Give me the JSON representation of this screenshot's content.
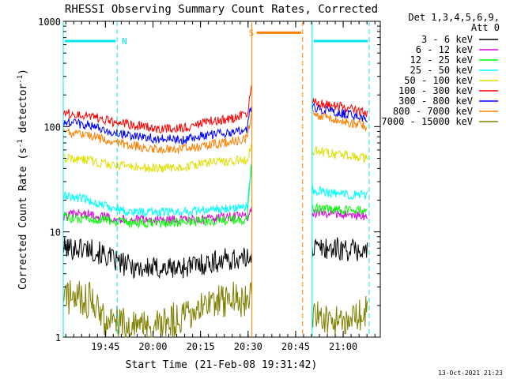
{
  "chart_data": {
    "type": "line",
    "title": "RHESSI Observing Summary Count Rates, Corrected",
    "xlabel": "Start Time (21-Feb-08 19:31:42)",
    "ylabel_main": "Corrected Count Rate (s",
    "ylabel_sup1": "-1",
    "ylabel_mid": " detector",
    "ylabel_sup2": "-1",
    "ylabel_end": ")",
    "yscale": "log",
    "ylim": [
      1,
      1000
    ],
    "xlim_minutes": [
      0,
      100
    ],
    "x_tick_labels": [
      "19:45",
      "20:00",
      "20:15",
      "20:30",
      "20:45",
      "21:00"
    ],
    "x_tick_minutes": [
      13.3,
      28.3,
      43.3,
      58.3,
      73.3,
      88.3
    ],
    "y_tick_labels": [
      "1",
      "10",
      "100",
      "1000"
    ],
    "y_tick_values": [
      1,
      10,
      100,
      1000
    ],
    "legend_header": [
      "Det 1,3,4,5,6,9,",
      "Att 0"
    ],
    "footer_date": "13-Oct-2021 21:23",
    "flags": [
      {
        "label": "N",
        "color": "#00e5ee",
        "segments": [
          [
            0,
            17
          ],
          [
            78.5,
            96.5
          ]
        ],
        "level": 650
      },
      {
        "label": "S",
        "color": "#ff8000",
        "segments": [
          [
            60.5,
            75.5
          ]
        ],
        "level": 780
      }
    ],
    "vlines": [
      {
        "x": 0.0,
        "color": "#00e5ee",
        "dashed": false
      },
      {
        "x": 17.0,
        "color": "#00e5ee",
        "dashed": true
      },
      {
        "x": 59.5,
        "color": "#ff8000",
        "dashed": false
      },
      {
        "x": 75.5,
        "color": "#ff8000",
        "dashed": true
      },
      {
        "x": 78.5,
        "color": "#00e5ee",
        "dashed": false
      },
      {
        "x": 96.5,
        "color": "#00e5ee",
        "dashed": true
      }
    ],
    "gap": [
      59.5,
      78.5
    ],
    "series": [
      {
        "name": "3 - 6 keV",
        "color": "#000000",
        "points": [
          [
            0,
            7
          ],
          [
            8,
            7
          ],
          [
            13,
            6
          ],
          [
            18,
            5
          ],
          [
            25,
            4.5
          ],
          [
            35,
            4.5
          ],
          [
            45,
            5
          ],
          [
            52,
            5.5
          ],
          [
            58,
            5.5
          ],
          [
            59.3,
            6.5
          ],
          [
            78.6,
            7
          ],
          [
            85,
            7
          ],
          [
            96,
            6.5
          ]
        ]
      },
      {
        "name": "6 - 12 keV",
        "color": "#e000e0",
        "points": [
          [
            0,
            14
          ],
          [
            5,
            15
          ],
          [
            13,
            14
          ],
          [
            20,
            13
          ],
          [
            35,
            13
          ],
          [
            45,
            13
          ],
          [
            52,
            14
          ],
          [
            58,
            14
          ],
          [
            59.3,
            16
          ],
          [
            78.6,
            15
          ],
          [
            85,
            15
          ],
          [
            96,
            14
          ]
        ]
      },
      {
        "name": "12 - 25 keV",
        "color": "#00ff00",
        "points": [
          [
            0,
            14
          ],
          [
            5,
            13
          ],
          [
            13,
            13
          ],
          [
            20,
            12
          ],
          [
            30,
            12
          ],
          [
            40,
            12.5
          ],
          [
            52,
            13
          ],
          [
            58,
            13
          ],
          [
            59.3,
            45
          ],
          [
            78.6,
            17
          ],
          [
            85,
            16
          ],
          [
            96,
            16
          ]
        ]
      },
      {
        "name": "25 - 50 keV",
        "color": "#00ffff",
        "points": [
          [
            0,
            22
          ],
          [
            5,
            21
          ],
          [
            13,
            18
          ],
          [
            20,
            15.5
          ],
          [
            35,
            15.5
          ],
          [
            45,
            16
          ],
          [
            52,
            17
          ],
          [
            58,
            17
          ],
          [
            59.3,
            40
          ],
          [
            78.6,
            25
          ],
          [
            85,
            23
          ],
          [
            96,
            22
          ]
        ]
      },
      {
        "name": "50 - 100 keV",
        "color": "#e0e000",
        "points": [
          [
            0,
            50
          ],
          [
            8,
            48
          ],
          [
            13,
            44
          ],
          [
            20,
            42
          ],
          [
            30,
            40
          ],
          [
            38,
            41
          ],
          [
            46,
            46
          ],
          [
            52,
            47
          ],
          [
            58,
            48
          ],
          [
            59.3,
            70
          ],
          [
            78.6,
            60
          ],
          [
            85,
            55
          ],
          [
            96,
            50
          ]
        ]
      },
      {
        "name": "100 - 300 keV",
        "color": "#ff0000",
        "points": [
          [
            0,
            135
          ],
          [
            8,
            128
          ],
          [
            13,
            115
          ],
          [
            20,
            105
          ],
          [
            30,
            95
          ],
          [
            38,
            97
          ],
          [
            44,
            110
          ],
          [
            52,
            118
          ],
          [
            58,
            130
          ],
          [
            59.3,
            230
          ],
          [
            78.6,
            170
          ],
          [
            85,
            160
          ],
          [
            96,
            135
          ]
        ]
      },
      {
        "name": "300 - 800 keV",
        "color": "#0000ff",
        "points": [
          [
            0,
            110
          ],
          [
            8,
            103
          ],
          [
            13,
            92
          ],
          [
            20,
            83
          ],
          [
            30,
            76
          ],
          [
            38,
            75
          ],
          [
            44,
            82
          ],
          [
            52,
            88
          ],
          [
            58,
            96
          ],
          [
            59.3,
            160
          ],
          [
            78.6,
            150
          ],
          [
            85,
            140
          ],
          [
            96,
            120
          ]
        ]
      },
      {
        "name": "800 - 7000 keV",
        "color": "#ff8000",
        "points": [
          [
            0,
            88
          ],
          [
            8,
            83
          ],
          [
            13,
            75
          ],
          [
            20,
            67
          ],
          [
            30,
            61
          ],
          [
            38,
            61
          ],
          [
            44,
            66
          ],
          [
            52,
            71
          ],
          [
            58,
            77
          ],
          [
            59.3,
            130
          ],
          [
            78.6,
            130
          ],
          [
            85,
            120
          ],
          [
            96,
            100
          ]
        ]
      },
      {
        "name": "7000 - 15000 keV",
        "color": "#808000",
        "points": [
          [
            0,
            2.5
          ],
          [
            10,
            2.2
          ],
          [
            13,
            1.4
          ],
          [
            20,
            1.3
          ],
          [
            30,
            1.25
          ],
          [
            38,
            1.6
          ],
          [
            45,
            2.1
          ],
          [
            52,
            2.3
          ],
          [
            58,
            2.3
          ],
          [
            59.3,
            3
          ],
          [
            78.6,
            1.5
          ],
          [
            85,
            1.4
          ],
          [
            96,
            1.7
          ]
        ]
      }
    ]
  }
}
